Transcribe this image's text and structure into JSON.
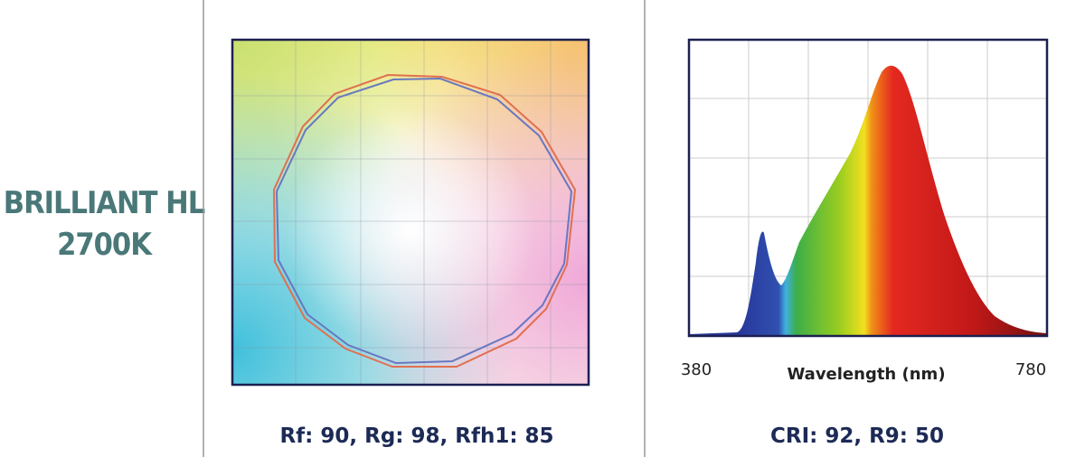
{
  "product": {
    "name": "BRILLIANT HL",
    "cct": "2700K"
  },
  "panels": [
    {
      "caption": "Rf: 90, Rg: 98, Rfh1: 85"
    },
    {
      "axis_min": 380,
      "axis_label": "Wavelength (nm)",
      "axis_max": 780,
      "caption": "CRI: 92, R9: 50"
    }
  ]
}
